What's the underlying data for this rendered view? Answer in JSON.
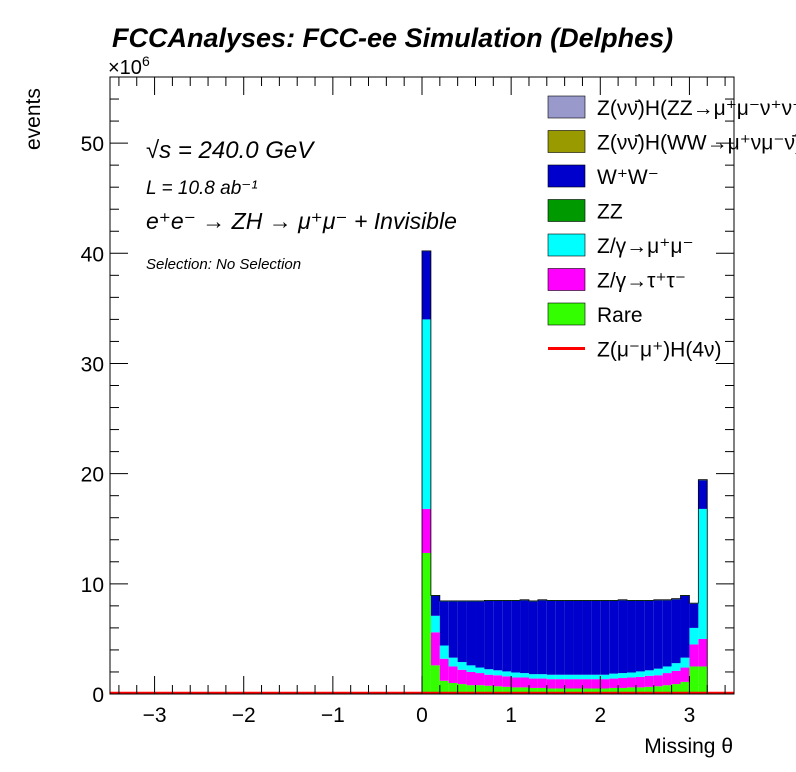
{
  "chart_data": {
    "type": "stacked-histogram",
    "title": "FCCAnalyses: FCC-ee Simulation (Delphes)",
    "xlabel": "Missing θ",
    "ylabel": "events",
    "y_multiplier": "×10",
    "y_multiplier_exp": "6",
    "xlim": [
      -3.5,
      3.5
    ],
    "ylim": [
      0,
      56
    ],
    "x_ticks": [
      -3,
      -2,
      -1,
      0,
      1,
      2,
      3
    ],
    "x_tick_labels": [
      "−3",
      "−2",
      "−1",
      "0",
      "1",
      "2",
      "3"
    ],
    "y_ticks": [
      0,
      10,
      20,
      30,
      40,
      50
    ],
    "y_tick_labels": [
      "0",
      "10",
      "20",
      "30",
      "40",
      "50"
    ],
    "legend_position": "top-right",
    "bin_start": 0,
    "bin_width": 0.1,
    "series": [
      {
        "name": "Rare",
        "color": "#33ff00",
        "values": [
          12.8,
          2.6,
          1.2,
          1.0,
          0.9,
          0.8,
          0.8,
          0.75,
          0.7,
          0.65,
          0.6,
          0.6,
          0.55,
          0.55,
          0.5,
          0.5,
          0.5,
          0.5,
          0.5,
          0.5,
          0.5,
          0.55,
          0.55,
          0.6,
          0.6,
          0.65,
          0.7,
          0.8,
          0.9,
          1.1,
          2.5,
          2.5
        ]
      },
      {
        "name": "Z/γ→τ⁺τ⁻",
        "color": "#ff00ff",
        "values": [
          4.0,
          3.0,
          2.0,
          1.5,
          1.3,
          1.2,
          1.1,
          1.0,
          1.0,
          0.95,
          0.9,
          0.9,
          0.85,
          0.85,
          0.85,
          0.85,
          0.85,
          0.85,
          0.85,
          0.85,
          0.85,
          0.85,
          0.9,
          0.9,
          0.95,
          1.0,
          1.0,
          1.1,
          1.2,
          1.3,
          2.0,
          2.5
        ]
      },
      {
        "name": "Z/γ→μ⁺μ⁻",
        "color": "#00ffff",
        "values": [
          17.2,
          1.5,
          1.2,
          0.8,
          0.7,
          0.6,
          0.5,
          0.5,
          0.45,
          0.45,
          0.45,
          0.4,
          0.4,
          0.4,
          0.4,
          0.4,
          0.4,
          0.4,
          0.4,
          0.4,
          0.4,
          0.45,
          0.45,
          0.45,
          0.5,
          0.5,
          0.6,
          0.6,
          0.7,
          0.9,
          1.5,
          11.8
        ]
      },
      {
        "name": "W⁺W⁻",
        "color": "#0000cc",
        "values": [
          6.2,
          1.8,
          4.0,
          5.1,
          5.5,
          5.8,
          6.0,
          6.2,
          6.3,
          6.4,
          6.5,
          6.6,
          6.6,
          6.7,
          6.7,
          6.7,
          6.7,
          6.7,
          6.7,
          6.7,
          6.7,
          6.6,
          6.6,
          6.5,
          6.4,
          6.3,
          6.2,
          6.0,
          5.8,
          5.6,
          2.2,
          2.6
        ]
      },
      {
        "name": "ZZ",
        "color": "#009900",
        "values": [
          0.02,
          0.05,
          0.05,
          0.05,
          0.05,
          0.05,
          0.05,
          0.05,
          0.05,
          0.05,
          0.05,
          0.05,
          0.05,
          0.05,
          0.05,
          0.05,
          0.05,
          0.05,
          0.05,
          0.05,
          0.05,
          0.05,
          0.05,
          0.05,
          0.05,
          0.05,
          0.05,
          0.05,
          0.05,
          0.05,
          0.05,
          0.05
        ]
      },
      {
        "name": "Z(νν̄)H(WW→μ⁺νμ⁻ν̄)",
        "color": "#999900",
        "values": [
          0,
          0,
          0,
          0,
          0,
          0,
          0,
          0,
          0,
          0,
          0,
          0,
          0,
          0,
          0,
          0,
          0,
          0,
          0,
          0,
          0,
          0,
          0,
          0,
          0,
          0,
          0,
          0,
          0,
          0,
          0,
          0
        ]
      },
      {
        "name": "Z(νν̄)H(ZZ→μ⁺μ⁻ν⁺ν⁻)",
        "color": "#9999cc",
        "values": [
          0,
          0,
          0,
          0,
          0,
          0,
          0,
          0,
          0,
          0,
          0,
          0,
          0,
          0,
          0,
          0,
          0,
          0,
          0,
          0,
          0,
          0,
          0,
          0,
          0,
          0,
          0,
          0,
          0,
          0,
          0,
          0
        ]
      }
    ],
    "signal": {
      "name": "Z(μ⁻μ⁺)H(4ν)",
      "color": "#ff0000",
      "values": [
        0.05,
        0.05,
        0.05,
        0.05,
        0.05,
        0.05,
        0.05,
        0.05,
        0.05,
        0.05,
        0.05,
        0.05,
        0.05,
        0.05,
        0.05,
        0.05,
        0.05,
        0.05,
        0.05,
        0.05,
        0.05,
        0.05,
        0.05,
        0.05,
        0.05,
        0.05,
        0.05,
        0.05,
        0.05,
        0.05,
        0.05,
        0.05
      ]
    },
    "legend": [
      {
        "label": "Z(νν̄)H(ZZ→μ⁺μ⁻ν⁺ν⁻)",
        "color": "#9999cc",
        "kind": "box"
      },
      {
        "label": "Z(νν̄)H(WW→μ⁺νμ⁻ν̄)",
        "color": "#999900",
        "kind": "box"
      },
      {
        "label": "W⁺W⁻",
        "color": "#0000cc",
        "kind": "box"
      },
      {
        "label": "ZZ",
        "color": "#009900",
        "kind": "box"
      },
      {
        "label": "Z/γ→μ⁺μ⁻",
        "color": "#00ffff",
        "kind": "box"
      },
      {
        "label": "Z/γ→τ⁺τ⁻",
        "color": "#ff00ff",
        "kind": "box"
      },
      {
        "label": "Rare",
        "color": "#33ff00",
        "kind": "box"
      },
      {
        "label": "Z(μ⁻μ⁺)H(4ν)",
        "color": "#ff0000",
        "kind": "line"
      }
    ],
    "annotations": {
      "energy": "√s = 240.0 GeV",
      "lumi": "L = 10.8 ab⁻¹",
      "process": "e⁺e⁻ → ZH → μ⁺μ⁻ + Invisible",
      "selection": "Selection: No Selection"
    }
  }
}
